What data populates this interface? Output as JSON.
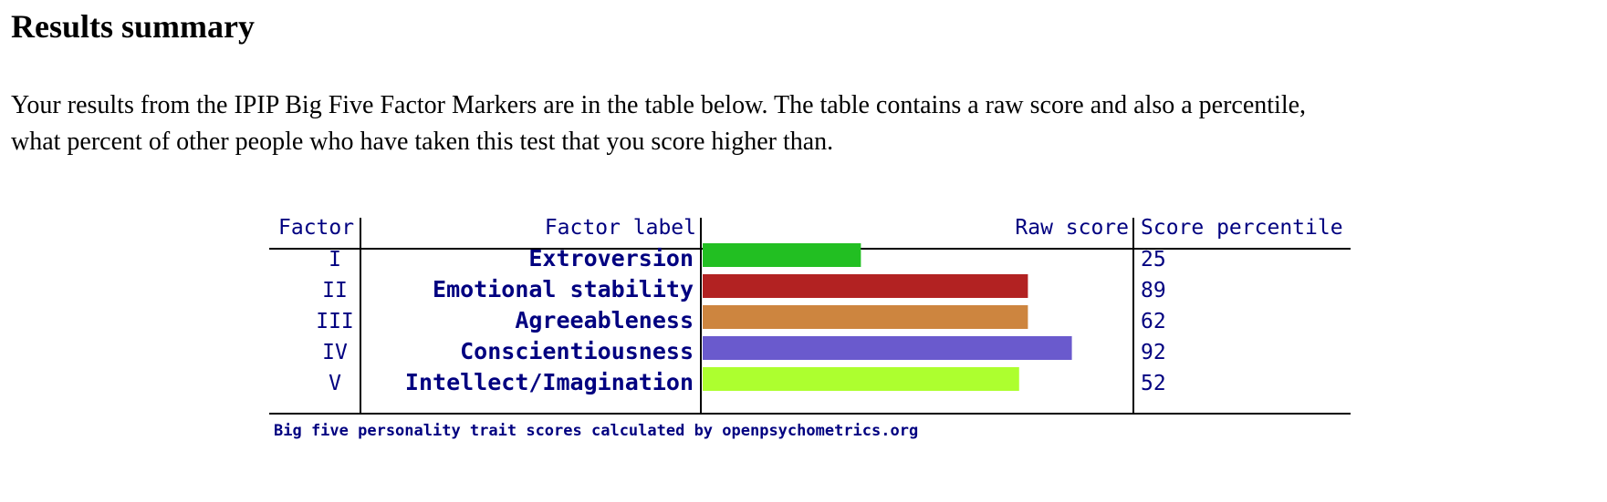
{
  "page": {
    "title": "Results summary",
    "intro_line_1": "Your results from the IPIP Big Five Factor Markers are in the table below. The table contains a raw score and also a percentile,",
    "intro_line_2": "what percent of other people who have taken this test that you score higher than."
  },
  "chart_data": {
    "type": "bar",
    "orientation": "horizontal",
    "columns": [
      "Factor",
      "Factor label",
      "Raw score",
      "Score percentile"
    ],
    "rows": [
      {
        "factor": "I",
        "label": "Extroversion",
        "raw": 18,
        "percentile": "25",
        "color": "#22bf22"
      },
      {
        "factor": "II",
        "label": "Emotional stability",
        "raw": 37,
        "percentile": "89",
        "color": "#b22222"
      },
      {
        "factor": "III",
        "label": "Agreeableness",
        "raw": 37,
        "percentile": "62",
        "color": "#cd853f"
      },
      {
        "factor": "IV",
        "label": "Conscientiousness",
        "raw": 42,
        "percentile": "92",
        "color": "#6a5acd"
      },
      {
        "factor": "V",
        "label": "Intellect/Imagination",
        "raw": 36,
        "percentile": "52",
        "color": "#adff2f"
      }
    ],
    "raw_range": [
      0,
      49
    ],
    "footer": "Big five personality trait scores calculated by openpsychometrics.org",
    "text_color": "#000080"
  }
}
